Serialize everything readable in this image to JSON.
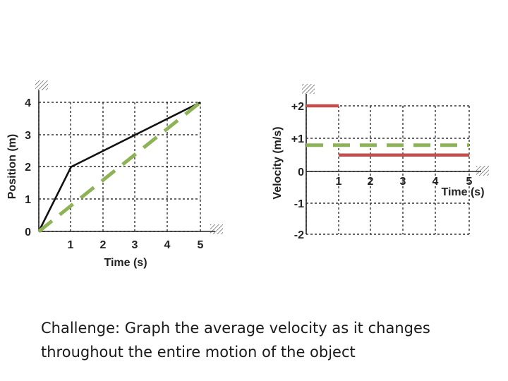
{
  "caption": {
    "line1": "Challenge: Graph the average velocity as it changes",
    "line2": "throughout the entire motion of the object"
  },
  "colors": {
    "grid": "#333333",
    "position_line": "#111111",
    "average_velocity": "#8db356",
    "velocity": "#c0504d"
  },
  "chart_data": [
    {
      "type": "line",
      "title": "",
      "xlabel": "Time (s)",
      "ylabel": "Position (m)",
      "xlim": [
        0,
        5
      ],
      "ylim": [
        0,
        4
      ],
      "x_ticks": [
        "1",
        "2",
        "3",
        "4",
        "5"
      ],
      "y_ticks": [
        "0",
        "1",
        "2",
        "3",
        "4"
      ],
      "grid": true,
      "series": [
        {
          "style": "solid",
          "color": "#111111",
          "x": [
            0,
            1,
            5
          ],
          "y": [
            0,
            2,
            4
          ]
        },
        {
          "style": "dashed",
          "color": "#8db356",
          "x": [
            0,
            5
          ],
          "y": [
            0,
            4
          ]
        }
      ]
    },
    {
      "type": "line",
      "title": "",
      "xlabel": "Time (s)",
      "ylabel": "Velocity (m/s)",
      "xlim": [
        0,
        5
      ],
      "ylim": [
        -2,
        2
      ],
      "x_ticks": [
        "1",
        "2",
        "3",
        "4",
        "5"
      ],
      "y_ticks": [
        "+2",
        "+1",
        "0",
        "-1",
        "-2"
      ],
      "grid": true,
      "series": [
        {
          "style": "solid",
          "color": "#c0504d",
          "x": [
            0,
            1
          ],
          "y": [
            2,
            2
          ]
        },
        {
          "style": "solid",
          "color": "#c0504d",
          "x": [
            1,
            5
          ],
          "y": [
            0.5,
            0.5
          ]
        },
        {
          "style": "dashed",
          "color": "#8db356",
          "x": [
            0,
            5
          ],
          "y": [
            0.8,
            0.8
          ]
        }
      ]
    }
  ]
}
